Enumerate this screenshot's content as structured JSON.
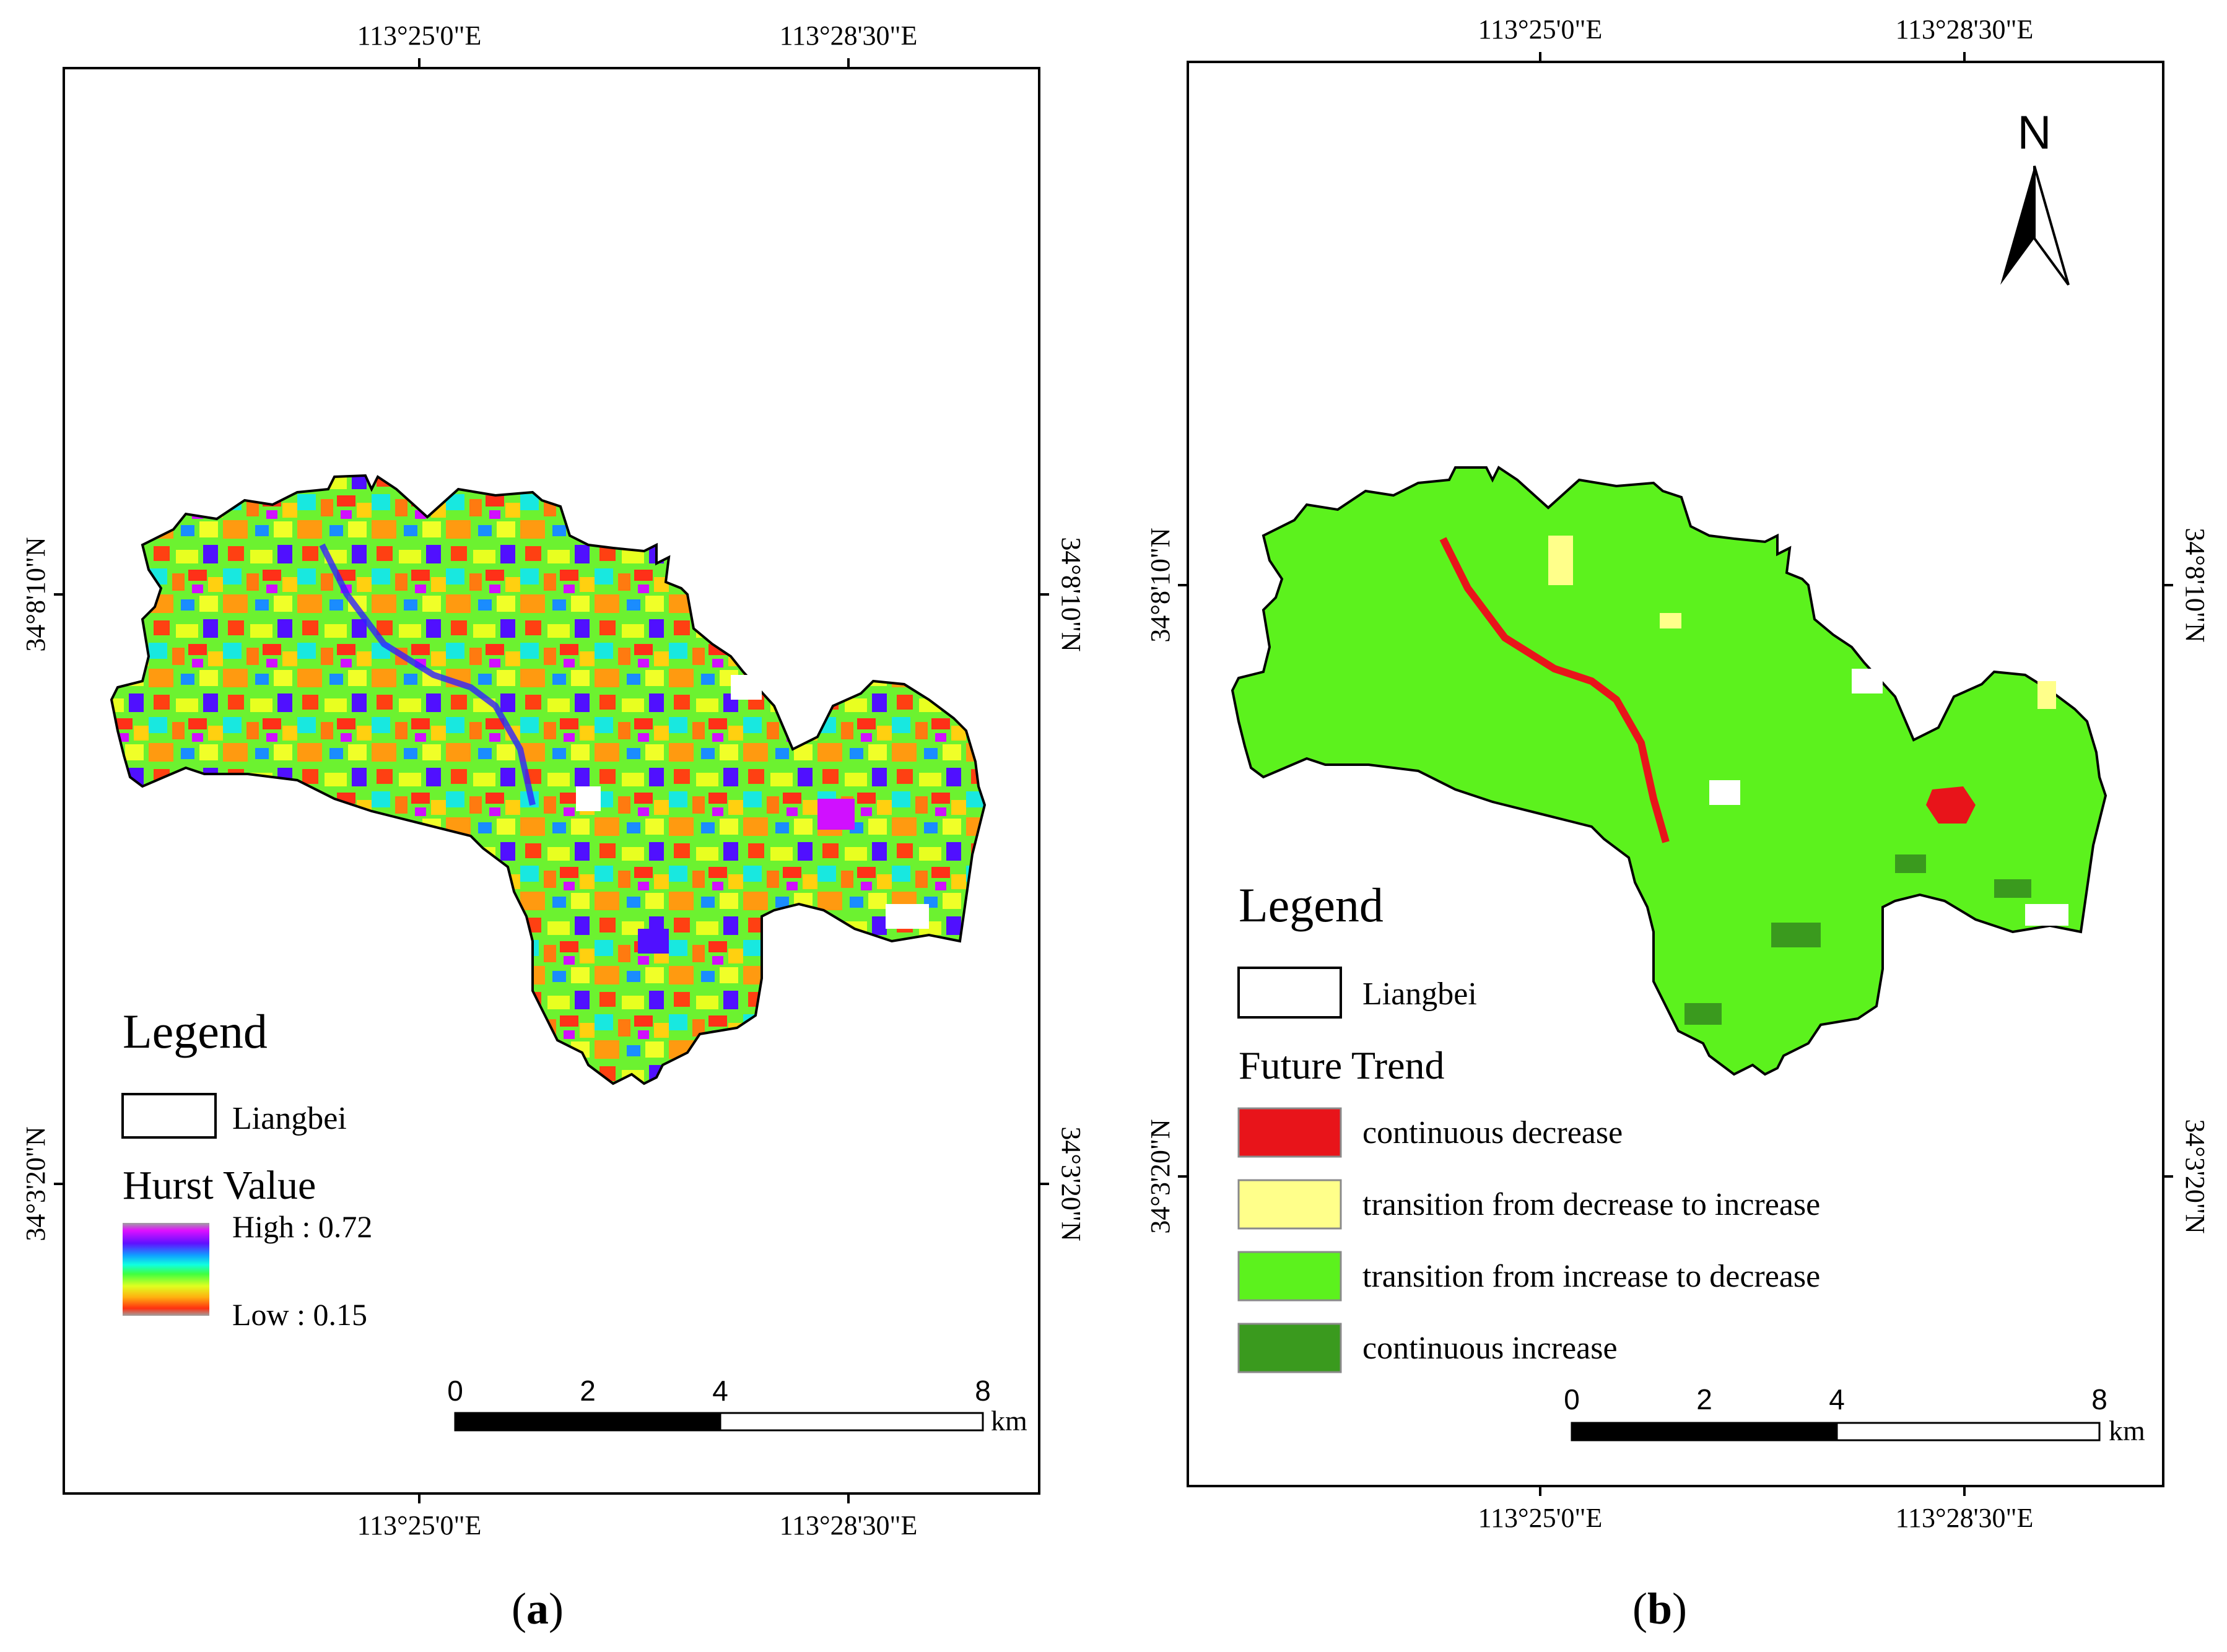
{
  "panel_a": {
    "label_open": "(",
    "label_letter": "a",
    "label_close": ")",
    "top_lon_1": "113°25'0\"E",
    "top_lon_2": "113°28'30\"E",
    "bottom_lon_1": "113°25'0\"E",
    "bottom_lon_2": "113°28'30\"E",
    "left_lat_1": "34°8'10\"N",
    "left_lat_2": "34°3'20\"N",
    "right_lat_1": "34°8'10\"N",
    "right_lat_2": "34°3'20\"N",
    "legend_title": "Legend",
    "boundary_label": "Liangbei",
    "hurst_title": "Hurst Value",
    "hurst_high": "High : 0.72",
    "hurst_low": "Low : 0.15",
    "scale_0": "0",
    "scale_2": "2",
    "scale_4": "4",
    "scale_8": "8",
    "scale_unit": "km"
  },
  "panel_b": {
    "label_open": "(",
    "label_letter": "b",
    "label_close": ")",
    "top_lon_1": "113°25'0\"E",
    "top_lon_2": "113°28'30\"E",
    "bottom_lon_1": "113°25'0\"E",
    "bottom_lon_2": "113°28'30\"E",
    "left_lat_1": "34°8'10\"N",
    "left_lat_2": "34°3'20\"N",
    "right_lat_1": "34°8'10\"N",
    "right_lat_2": "34°3'20\"N",
    "north_label": "N",
    "legend_title": "Legend",
    "boundary_label": "Liangbei",
    "trend_title": "Future Trend",
    "trend_classes": [
      {
        "label": "continuous decrease",
        "color": "#e8141a"
      },
      {
        "label": "transition from decrease to increase",
        "color": "#ffff8a"
      },
      {
        "label": "transition from increase to decrease",
        "color": "#5cf21d"
      },
      {
        "label": "continuous increase",
        "color": "#3a9a1e"
      }
    ],
    "scale_0": "0",
    "scale_2": "2",
    "scale_4": "4",
    "scale_8": "8",
    "scale_unit": "km"
  },
  "colors": {
    "hurst_ramp": [
      "#a0a0a0",
      "#e010ff",
      "#6010ff",
      "#10a0ff",
      "#10ffe0",
      "#40ff40",
      "#e0ff20",
      "#ffb010",
      "#ff3010",
      "#a0a0a0"
    ],
    "map_a_base": "#5cf21d",
    "map_b_base": "#5cf21d"
  }
}
